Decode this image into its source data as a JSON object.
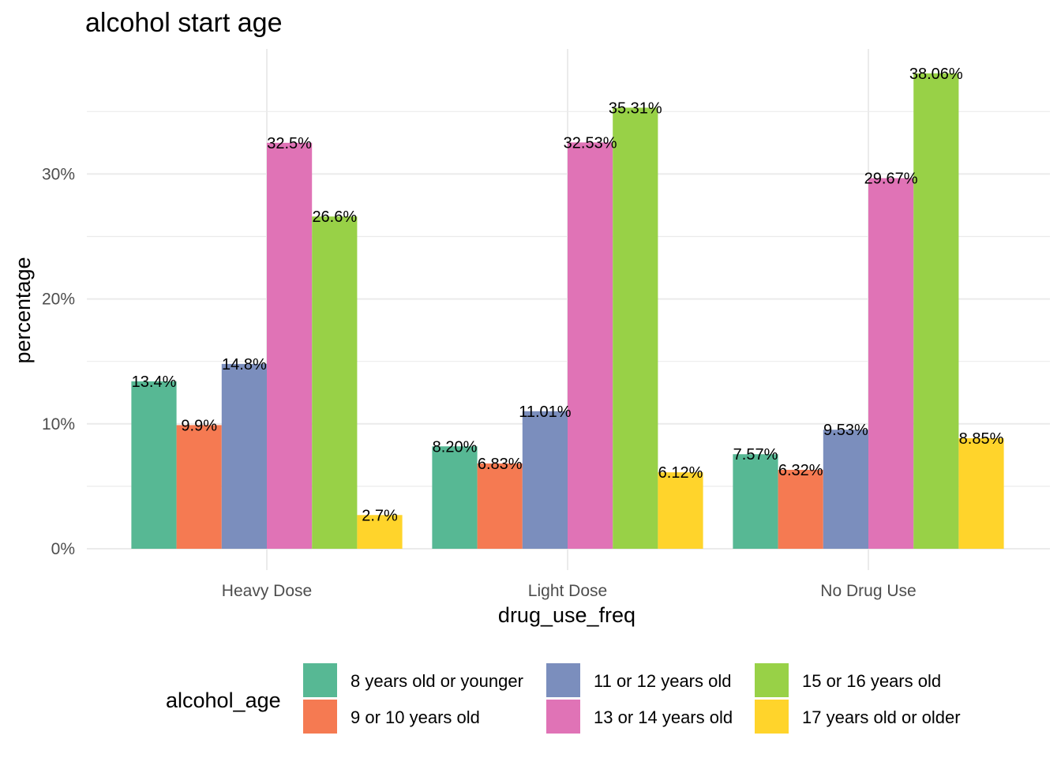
{
  "chart_data": {
    "type": "bar",
    "title": "alcohol start age",
    "xlabel": "drug_use_freq",
    "ylabel": "percentage",
    "categories": [
      "Heavy Dose",
      "Light Dose",
      "No Drug Use"
    ],
    "ylim": [
      0,
      39
    ],
    "yticks": [
      0,
      10,
      20,
      30
    ],
    "ytick_labels": [
      "0%",
      "10%",
      "20%",
      "30%"
    ],
    "grid": true,
    "legend_title": "alcohol_age",
    "legend_position": "bottom",
    "series": [
      {
        "name": "8 years old or younger",
        "color": "#57b894",
        "values": [
          13.4,
          8.2,
          7.57
        ],
        "labels": [
          "13.4%",
          "8.20%",
          "7.57%"
        ]
      },
      {
        "name": "9 or 10 years old",
        "color": "#f57a52",
        "values": [
          9.9,
          6.83,
          6.32
        ],
        "labels": [
          "9.9%",
          "6.83%",
          "6.32%"
        ]
      },
      {
        "name": "11 or 12 years old",
        "color": "#7b8ebd",
        "values": [
          14.8,
          11.01,
          9.53
        ],
        "labels": [
          "14.8%",
          "11.01%",
          "9.53%"
        ]
      },
      {
        "name": "13 or 14 years old",
        "color": "#e073b6",
        "values": [
          32.5,
          32.53,
          29.67
        ],
        "labels": [
          "32.5%",
          "32.53%",
          "29.67%"
        ]
      },
      {
        "name": "15 or 16 years old",
        "color": "#98d147",
        "values": [
          26.6,
          35.31,
          38.06
        ],
        "labels": [
          "26.6%",
          "35.31%",
          "38.06%"
        ]
      },
      {
        "name": "17 years old or older",
        "color": "#ffd42b",
        "values": [
          2.7,
          6.12,
          8.85
        ],
        "labels": [
          "2.7%",
          "6.12%",
          "8.85%"
        ]
      }
    ]
  }
}
